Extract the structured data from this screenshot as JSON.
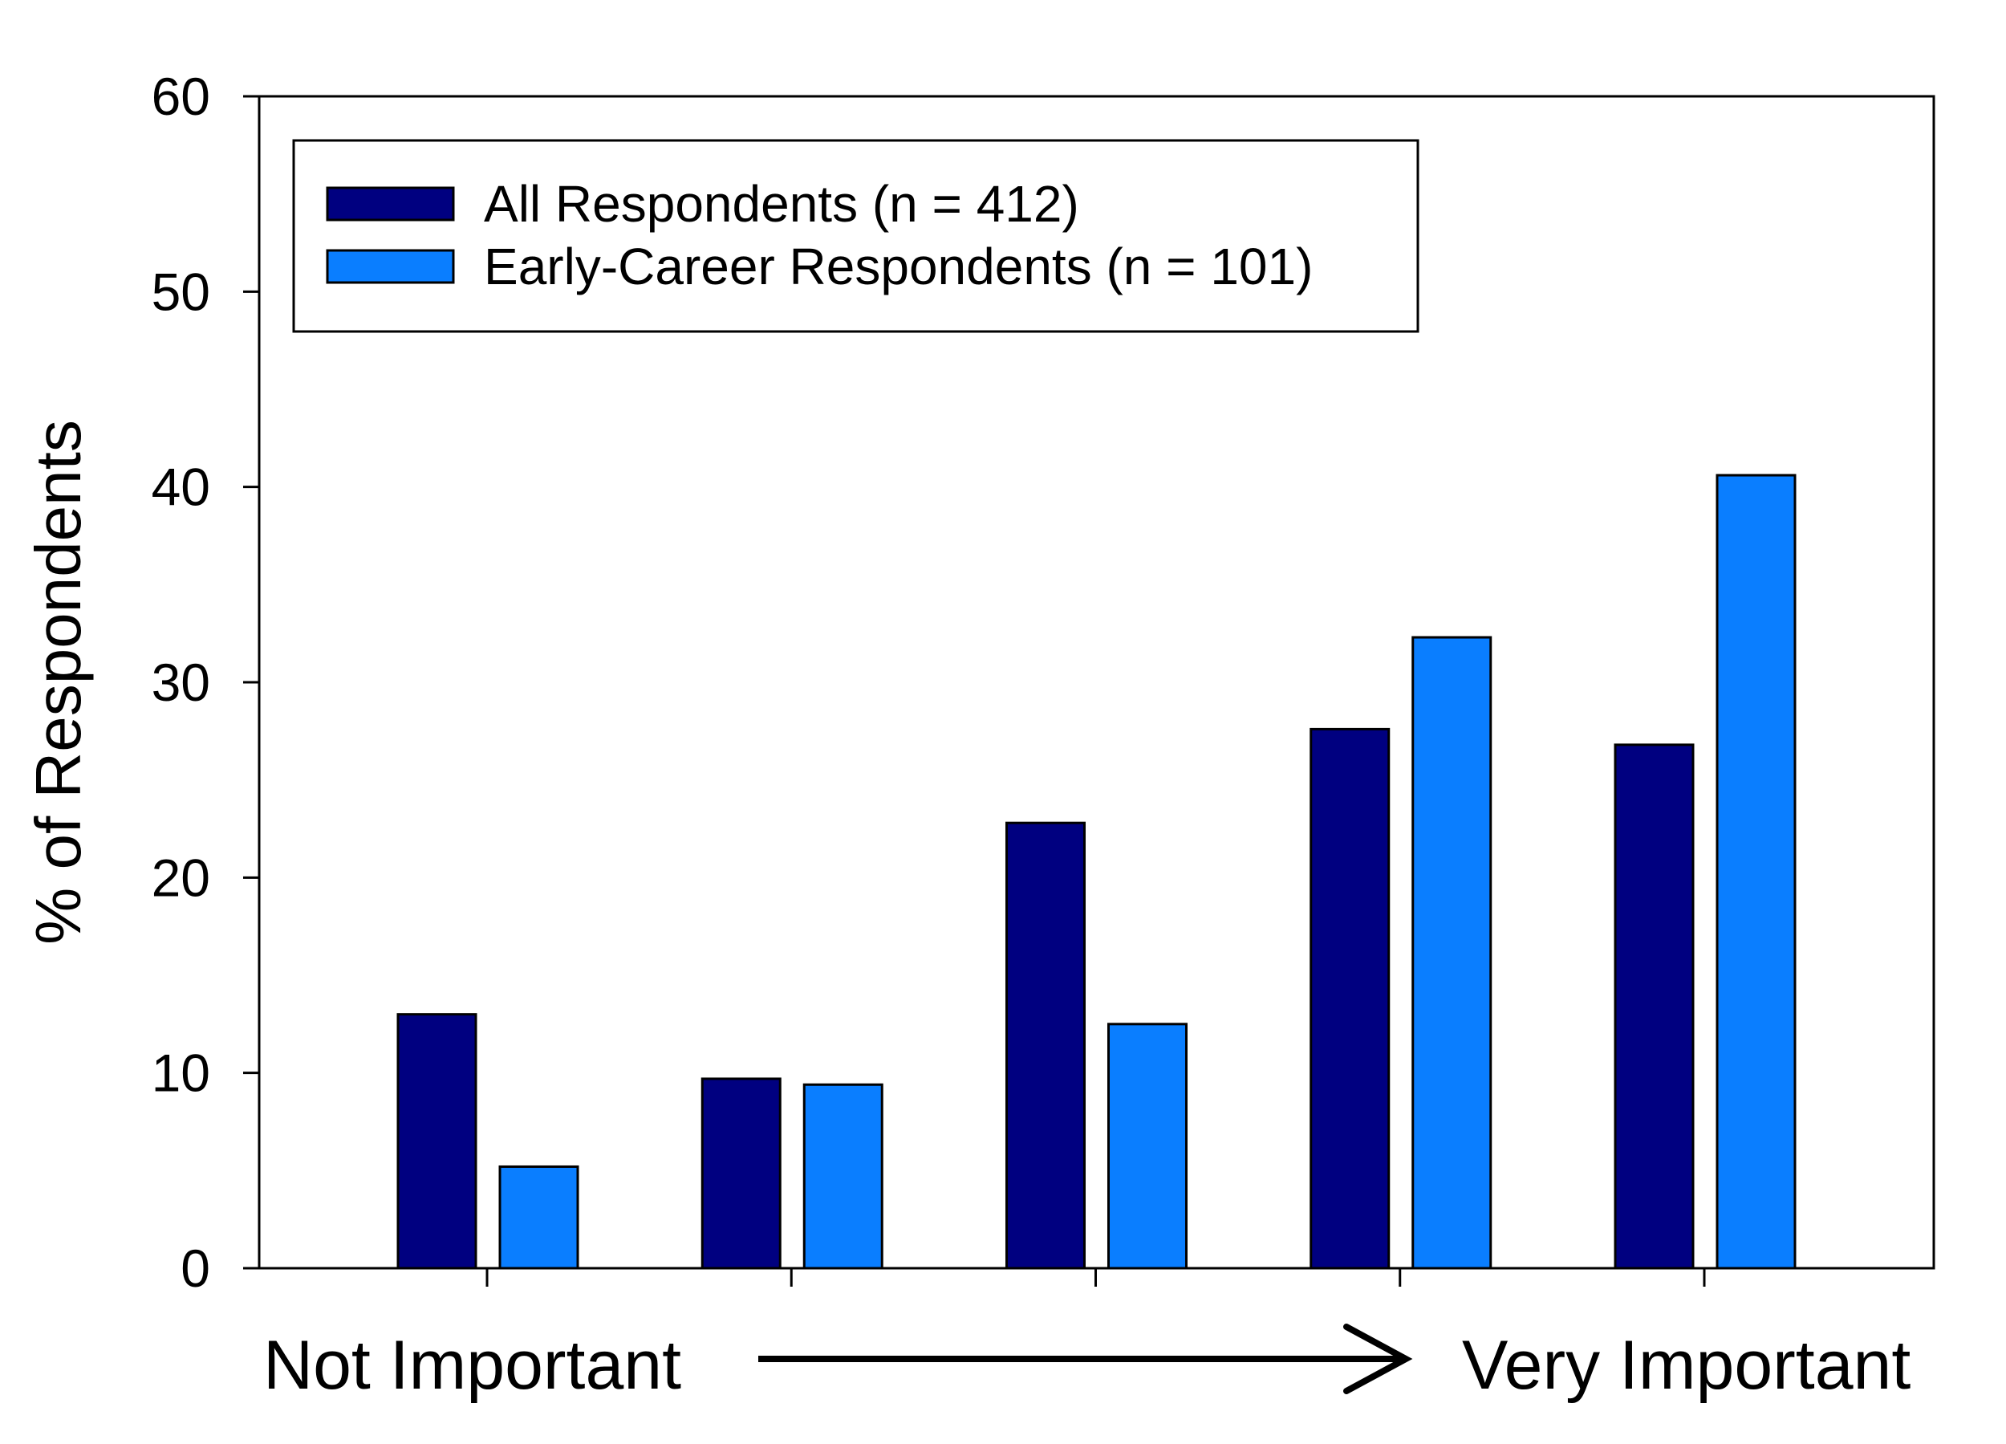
{
  "chart_data": {
    "type": "bar",
    "title": "",
    "xlabel": "",
    "ylabel": "% of Respondents",
    "ylim": [
      0,
      60
    ],
    "yticks": [
      "0",
      "10",
      "20",
      "30",
      "40",
      "50",
      "60"
    ],
    "categories": [
      "1",
      "2",
      "3",
      "4",
      "5"
    ],
    "x_annotation": {
      "left": "Not Important",
      "right": "Very Important"
    },
    "legend_position": "top-left",
    "series": [
      {
        "name": "All Respondents (n = 412)",
        "color": "#000080",
        "values": [
          13.0,
          9.7,
          22.8,
          27.6,
          26.8
        ]
      },
      {
        "name": "Early-Career Respondents (n = 101)",
        "color": "#0A7EFF",
        "values": [
          5.2,
          9.4,
          12.5,
          32.3,
          40.6
        ]
      }
    ]
  }
}
